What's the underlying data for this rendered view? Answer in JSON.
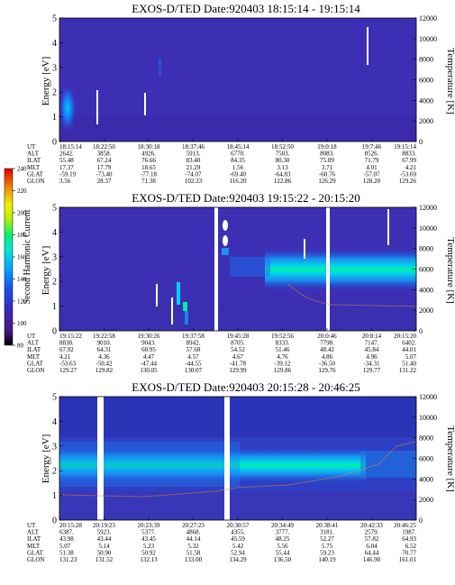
{
  "chart_data": {
    "type": "heatmap",
    "colorbar": {
      "label": "Second Harmonic Current",
      "ticks": [
        "80",
        "100",
        "120",
        "140",
        "160",
        "180",
        "200",
        "220",
        "240"
      ],
      "range": [
        80,
        240
      ],
      "colors": [
        "#000000",
        "#5a1a7a",
        "#3a2ab0",
        "#2a3ad8",
        "#1a60f0",
        "#00b0ff",
        "#00e8d0",
        "#00f080",
        "#b0f000",
        "#f0f000",
        "#f0a000",
        "#f03000",
        "#e00000"
      ]
    },
    "panels": [
      {
        "title": "EXOS-D/TED   Date:920403   18:15:14 - 19:15:14",
        "ylabel": "Energy [eV]",
        "y2label": "Temperature [K]",
        "ylim": [
          0,
          5
        ],
        "y2lim": [
          0,
          12000
        ],
        "yticks": [
          "0",
          "1",
          "2",
          "3",
          "4",
          "5"
        ],
        "y2ticks": [
          "0",
          "2000",
          "4000",
          "6000",
          "8000",
          "10000",
          "12000"
        ],
        "ephemeris": {
          "labels": [
            "UT",
            "ALT",
            "ILAT",
            "MLT",
            "GLAT",
            "GLON"
          ],
          "columns": [
            [
              "18:15:14",
              "2642.",
              "55.48",
              "17.37",
              "-59.19",
              "3.56"
            ],
            [
              "18:22:50",
              "3858.",
              "67.24",
              "17.79",
              "-73.40",
              "28.37"
            ],
            [
              "18:30:18",
              "4926.",
              "76.66",
              "18.65",
              "-77.18",
              "71.38"
            ],
            [
              "18:37:46",
              "5913.",
              "83.40",
              "21.29",
              "-74.07",
              "102.33"
            ],
            [
              "18:45:14",
              "6770.",
              "84.35",
              "1.56",
              "-69.40",
              "116.20"
            ],
            [
              "18:52:50",
              "7503.",
              "80.30",
              "3.13",
              "-64.83",
              "122.86"
            ],
            [
              "19:0:18",
              "8083.",
              "75.89",
              "3.71",
              "-60.76",
              "126.29"
            ],
            [
              "19:7:46",
              "8526.",
              "71.79",
              "4.01",
              "-57.07",
              "128.20"
            ],
            [
              "19:15:14",
              "8833.",
              "67.99",
              "4.21",
              "-53.69",
              "129.26"
            ]
          ]
        }
      },
      {
        "title": "EXOS-D/TED   Date:920403   19:15:22 - 20:15:20",
        "ylabel": "Energy [eV]",
        "y2label": "Temperature [K]",
        "ylim": [
          0,
          5
        ],
        "y2lim": [
          0,
          12000
        ],
        "yticks": [
          "0",
          "1",
          "2",
          "3",
          "4",
          "5"
        ],
        "y2ticks": [
          "0",
          "2000",
          "4000",
          "6000",
          "8000",
          "10000",
          "12000"
        ],
        "ephemeris": {
          "labels": [
            "UT",
            "ALT",
            "ILAT",
            "MLT",
            "GLAT",
            "GLON"
          ],
          "columns": [
            [
              "19:15:22",
              "8838.",
              "67.92",
              "4.21",
              "-53.63",
              "129.27"
            ],
            [
              "19:22:58",
              "9010.",
              "64.31",
              "4.36",
              "-50.42",
              "129.82"
            ],
            [
              "19:30:26",
              "9043.",
              "60.95",
              "4.47",
              "-47.44",
              "130.05"
            ],
            [
              "19:37:58",
              "8942.",
              "57.68",
              "4.57",
              "-44.55",
              "130.07"
            ],
            [
              "19:45:28",
              "8705.",
              "54.52",
              "4.67",
              "-41.78",
              "129.99"
            ],
            [
              "19:52:56",
              "8333.",
              "51.46",
              "4.76",
              "-39.12",
              "129.86"
            ],
            [
              "20:0:46",
              "7798.",
              "48.42",
              "4.86",
              "-36.50",
              "129.76"
            ],
            [
              "20:8:14",
              "7147.",
              "45.84",
              "4.96",
              "-34.31",
              "129.77"
            ],
            [
              "20:15:20",
              "6402.",
              "44.01",
              "5.07",
              "51.40",
              "131.22"
            ]
          ]
        }
      },
      {
        "title": "EXOS-D/TED   Date:920403   20:15:28 - 20:46:25",
        "ylabel": "Energy [eV]",
        "y2label": "Temperature [K]",
        "ylim": [
          0,
          5
        ],
        "y2lim": [
          0,
          12000
        ],
        "yticks": [
          "0",
          "1",
          "2",
          "3",
          "4",
          "5"
        ],
        "y2ticks": [
          "0",
          "2000",
          "4000",
          "6000",
          "8000",
          "10000",
          "12000"
        ],
        "ephemeris": {
          "labels": [
            "UT",
            "ALT",
            "ILAT",
            "MLT",
            "GLAT",
            "GLON"
          ],
          "columns": [
            [
              "20:15:28",
              "6387.",
              "43.98",
              "5.07",
              "51.38",
              "131.23"
            ],
            [
              "20:19:23",
              "5923.",
              "43.44",
              "5.14",
              "50.90",
              "131.52"
            ],
            [
              "20:23:39",
              "5377.",
              "43.45",
              "5.23",
              "50.92",
              "132.13"
            ],
            [
              "20:27:23",
              "4868.",
              "44.14",
              "5.32",
              "51.58",
              "133.00"
            ],
            [
              "20:30:57",
              "4355.",
              "45.59",
              "5.42",
              "52.94",
              "134.29"
            ],
            [
              "20:34:49",
              "3777.",
              "48.25",
              "5.56",
              "55.44",
              "136.50"
            ],
            [
              "20:38:41",
              "3181.",
              "52.27",
              "5.75",
              "59.23",
              "140.19"
            ],
            [
              "20:42:33",
              "2579.",
              "57.82",
              "6.04",
              "64.44",
              "146.90"
            ],
            [
              "20:46:25",
              "1987.",
              "64.93",
              "6.52",
              "70.77",
              "161.01"
            ]
          ]
        }
      }
    ]
  }
}
